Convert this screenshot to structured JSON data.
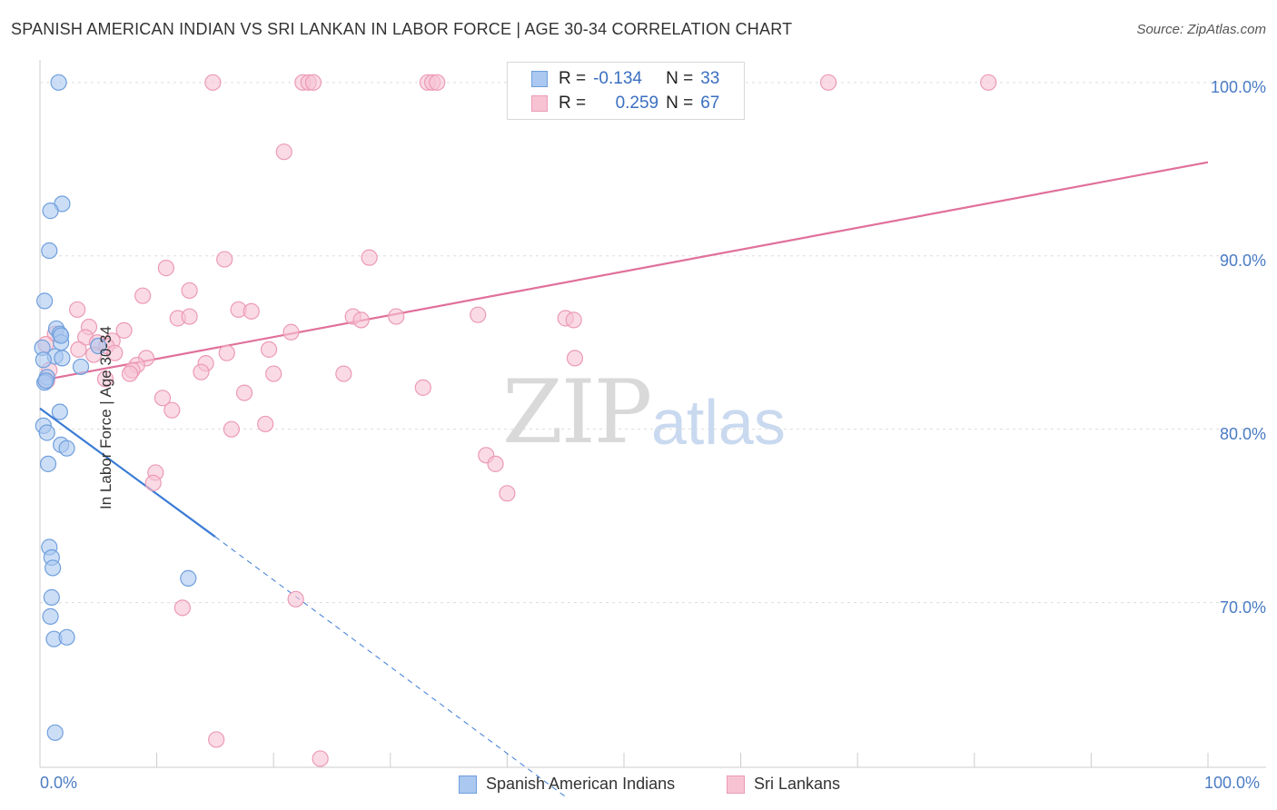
{
  "title": "SPANISH AMERICAN INDIAN VS SRI LANKAN IN LABOR FORCE | AGE 30-34 CORRELATION CHART",
  "source": "Source: ZipAtlas.com",
  "watermark": {
    "zip": "ZIP",
    "atlas": "atlas"
  },
  "legend_top": {
    "row1": {
      "r_label": "R =",
      "r_value": "-0.134",
      "n_label": "N =",
      "n_value": "33"
    },
    "row2": {
      "r_label": "R =",
      "r_value": "0.259",
      "n_label": "N =",
      "n_value": "67"
    }
  },
  "legend_bottom": {
    "series1": "Spanish American Indians",
    "series2": "Sri Lankans"
  },
  "colors": {
    "blue_fill": "#aac8f0",
    "blue_stroke": "#6f9fdd",
    "blue_line": "#3a7bd5",
    "pink_fill": "#f7c3d3",
    "pink_stroke": "#ec9ab5",
    "pink_line": "#e0709a"
  },
  "chart_data": {
    "type": "scatter",
    "title": "SPANISH AMERICAN INDIAN VS SRI LANKAN IN LABOR FORCE | AGE 30-34 CORRELATION CHART",
    "xlabel": "",
    "ylabel": "In Labor Force | Age 30-34",
    "x_ticks": [
      "0.0%",
      "100.0%"
    ],
    "y_ticks": [
      "100.0%",
      "90.0%",
      "80.0%",
      "70.0%"
    ],
    "xlim": [
      0,
      100
    ],
    "ylim": [
      60.5,
      101.3
    ],
    "series": [
      {
        "name": "Spanish American Indians",
        "r": -0.134,
        "n": 33,
        "trend": {
          "x1": 0,
          "y1": 81.2,
          "x2": 15,
          "y2": 73.8,
          "dash_to_x": 45,
          "dash_to_y": 58.8
        },
        "points": [
          [
            1.6,
            100.0
          ],
          [
            1.9,
            93.0
          ],
          [
            0.9,
            92.6
          ],
          [
            0.8,
            90.3
          ],
          [
            0.4,
            87.4
          ],
          [
            1.4,
            85.8
          ],
          [
            1.7,
            85.5
          ],
          [
            1.8,
            85.0
          ],
          [
            0.2,
            84.7
          ],
          [
            1.3,
            84.2
          ],
          [
            1.9,
            84.1
          ],
          [
            0.3,
            84.0
          ],
          [
            3.5,
            83.6
          ],
          [
            5.0,
            84.8
          ],
          [
            0.6,
            83.0
          ],
          [
            0.4,
            82.7
          ],
          [
            0.5,
            82.8
          ],
          [
            1.7,
            81.0
          ],
          [
            0.3,
            80.2
          ],
          [
            0.6,
            79.8
          ],
          [
            1.8,
            79.1
          ],
          [
            2.3,
            78.9
          ],
          [
            0.7,
            78.0
          ],
          [
            0.8,
            73.2
          ],
          [
            1.0,
            72.6
          ],
          [
            1.1,
            72.0
          ],
          [
            12.7,
            71.4
          ],
          [
            1.0,
            70.3
          ],
          [
            0.9,
            69.2
          ],
          [
            1.2,
            67.9
          ],
          [
            2.3,
            68.0
          ],
          [
            1.3,
            62.5
          ],
          [
            1.8,
            85.4
          ]
        ]
      },
      {
        "name": "Sri Lankans",
        "r": 0.259,
        "n": 67,
        "trend": {
          "x1": 0,
          "y1": 82.8,
          "x2": 100,
          "y2": 95.4
        },
        "points": [
          [
            14.8,
            100.0
          ],
          [
            22.5,
            100.0
          ],
          [
            23.0,
            100.0
          ],
          [
            23.4,
            100.0
          ],
          [
            33.2,
            100.0
          ],
          [
            33.6,
            100.0
          ],
          [
            34.0,
            100.0
          ],
          [
            67.5,
            100.0
          ],
          [
            81.2,
            100.0
          ],
          [
            20.9,
            96.0
          ],
          [
            15.8,
            89.8
          ],
          [
            28.2,
            89.9
          ],
          [
            10.8,
            89.3
          ],
          [
            12.8,
            88.0
          ],
          [
            8.8,
            87.7
          ],
          [
            3.2,
            86.9
          ],
          [
            17.0,
            86.9
          ],
          [
            18.1,
            86.8
          ],
          [
            11.8,
            86.4
          ],
          [
            12.8,
            86.5
          ],
          [
            26.8,
            86.5
          ],
          [
            27.5,
            86.3
          ],
          [
            30.5,
            86.5
          ],
          [
            37.5,
            86.6
          ],
          [
            45.0,
            86.4
          ],
          [
            4.2,
            85.9
          ],
          [
            7.2,
            85.7
          ],
          [
            21.5,
            85.6
          ],
          [
            3.9,
            85.3
          ],
          [
            1.3,
            85.5
          ],
          [
            6.2,
            85.1
          ],
          [
            4.9,
            85.0
          ],
          [
            5.7,
            84.8
          ],
          [
            3.3,
            84.6
          ],
          [
            19.6,
            84.6
          ],
          [
            16.0,
            84.4
          ],
          [
            6.4,
            84.4
          ],
          [
            4.6,
            84.3
          ],
          [
            9.1,
            84.1
          ],
          [
            14.2,
            83.8
          ],
          [
            8.3,
            83.7
          ],
          [
            7.9,
            83.4
          ],
          [
            7.7,
            83.2
          ],
          [
            13.8,
            83.3
          ],
          [
            20.0,
            83.2
          ],
          [
            26.0,
            83.2
          ],
          [
            5.6,
            82.9
          ],
          [
            0.6,
            82.8
          ],
          [
            32.8,
            82.4
          ],
          [
            17.5,
            82.1
          ],
          [
            10.5,
            81.8
          ],
          [
            11.3,
            81.1
          ],
          [
            19.3,
            80.3
          ],
          [
            16.4,
            80.0
          ],
          [
            45.7,
            86.3
          ],
          [
            45.8,
            84.1
          ],
          [
            38.2,
            78.5
          ],
          [
            39.0,
            78.0
          ],
          [
            40.0,
            76.3
          ],
          [
            9.9,
            77.5
          ],
          [
            9.7,
            76.9
          ],
          [
            12.2,
            69.7
          ],
          [
            21.9,
            70.2
          ],
          [
            15.1,
            62.1
          ],
          [
            24.0,
            61.0
          ],
          [
            0.5,
            84.9
          ],
          [
            0.8,
            83.4
          ]
        ]
      }
    ]
  }
}
